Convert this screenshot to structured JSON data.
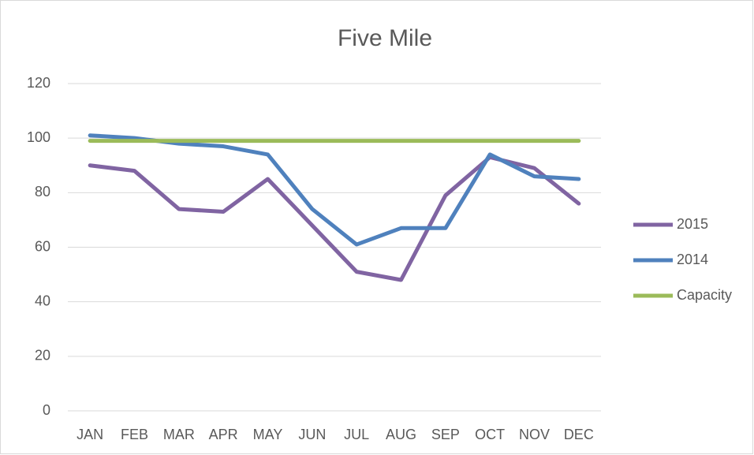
{
  "chart_data": {
    "type": "line",
    "title": "Five Mile",
    "categories": [
      "JAN",
      "FEB",
      "MAR",
      "APR",
      "MAY",
      "JUN",
      "JUL",
      "AUG",
      "SEP",
      "OCT",
      "NOV",
      "DEC"
    ],
    "series": [
      {
        "name": "2015",
        "color": "#8064a2",
        "values": [
          90,
          88,
          74,
          73,
          85,
          68,
          51,
          48,
          79,
          93,
          89,
          76
        ]
      },
      {
        "name": "2014",
        "color": "#4f81bd",
        "values": [
          101,
          100,
          98,
          97,
          94,
          74,
          61,
          67,
          67,
          94,
          86,
          85
        ]
      },
      {
        "name": "Capacity",
        "color": "#9bbb59",
        "values": [
          99,
          99,
          99,
          99,
          99,
          99,
          99,
          99,
          99,
          99,
          99,
          99
        ]
      }
    ],
    "ylim": [
      0,
      120
    ],
    "yticks": [
      0,
      20,
      40,
      60,
      80,
      100,
      120
    ],
    "grid": true,
    "legend": "right"
  }
}
